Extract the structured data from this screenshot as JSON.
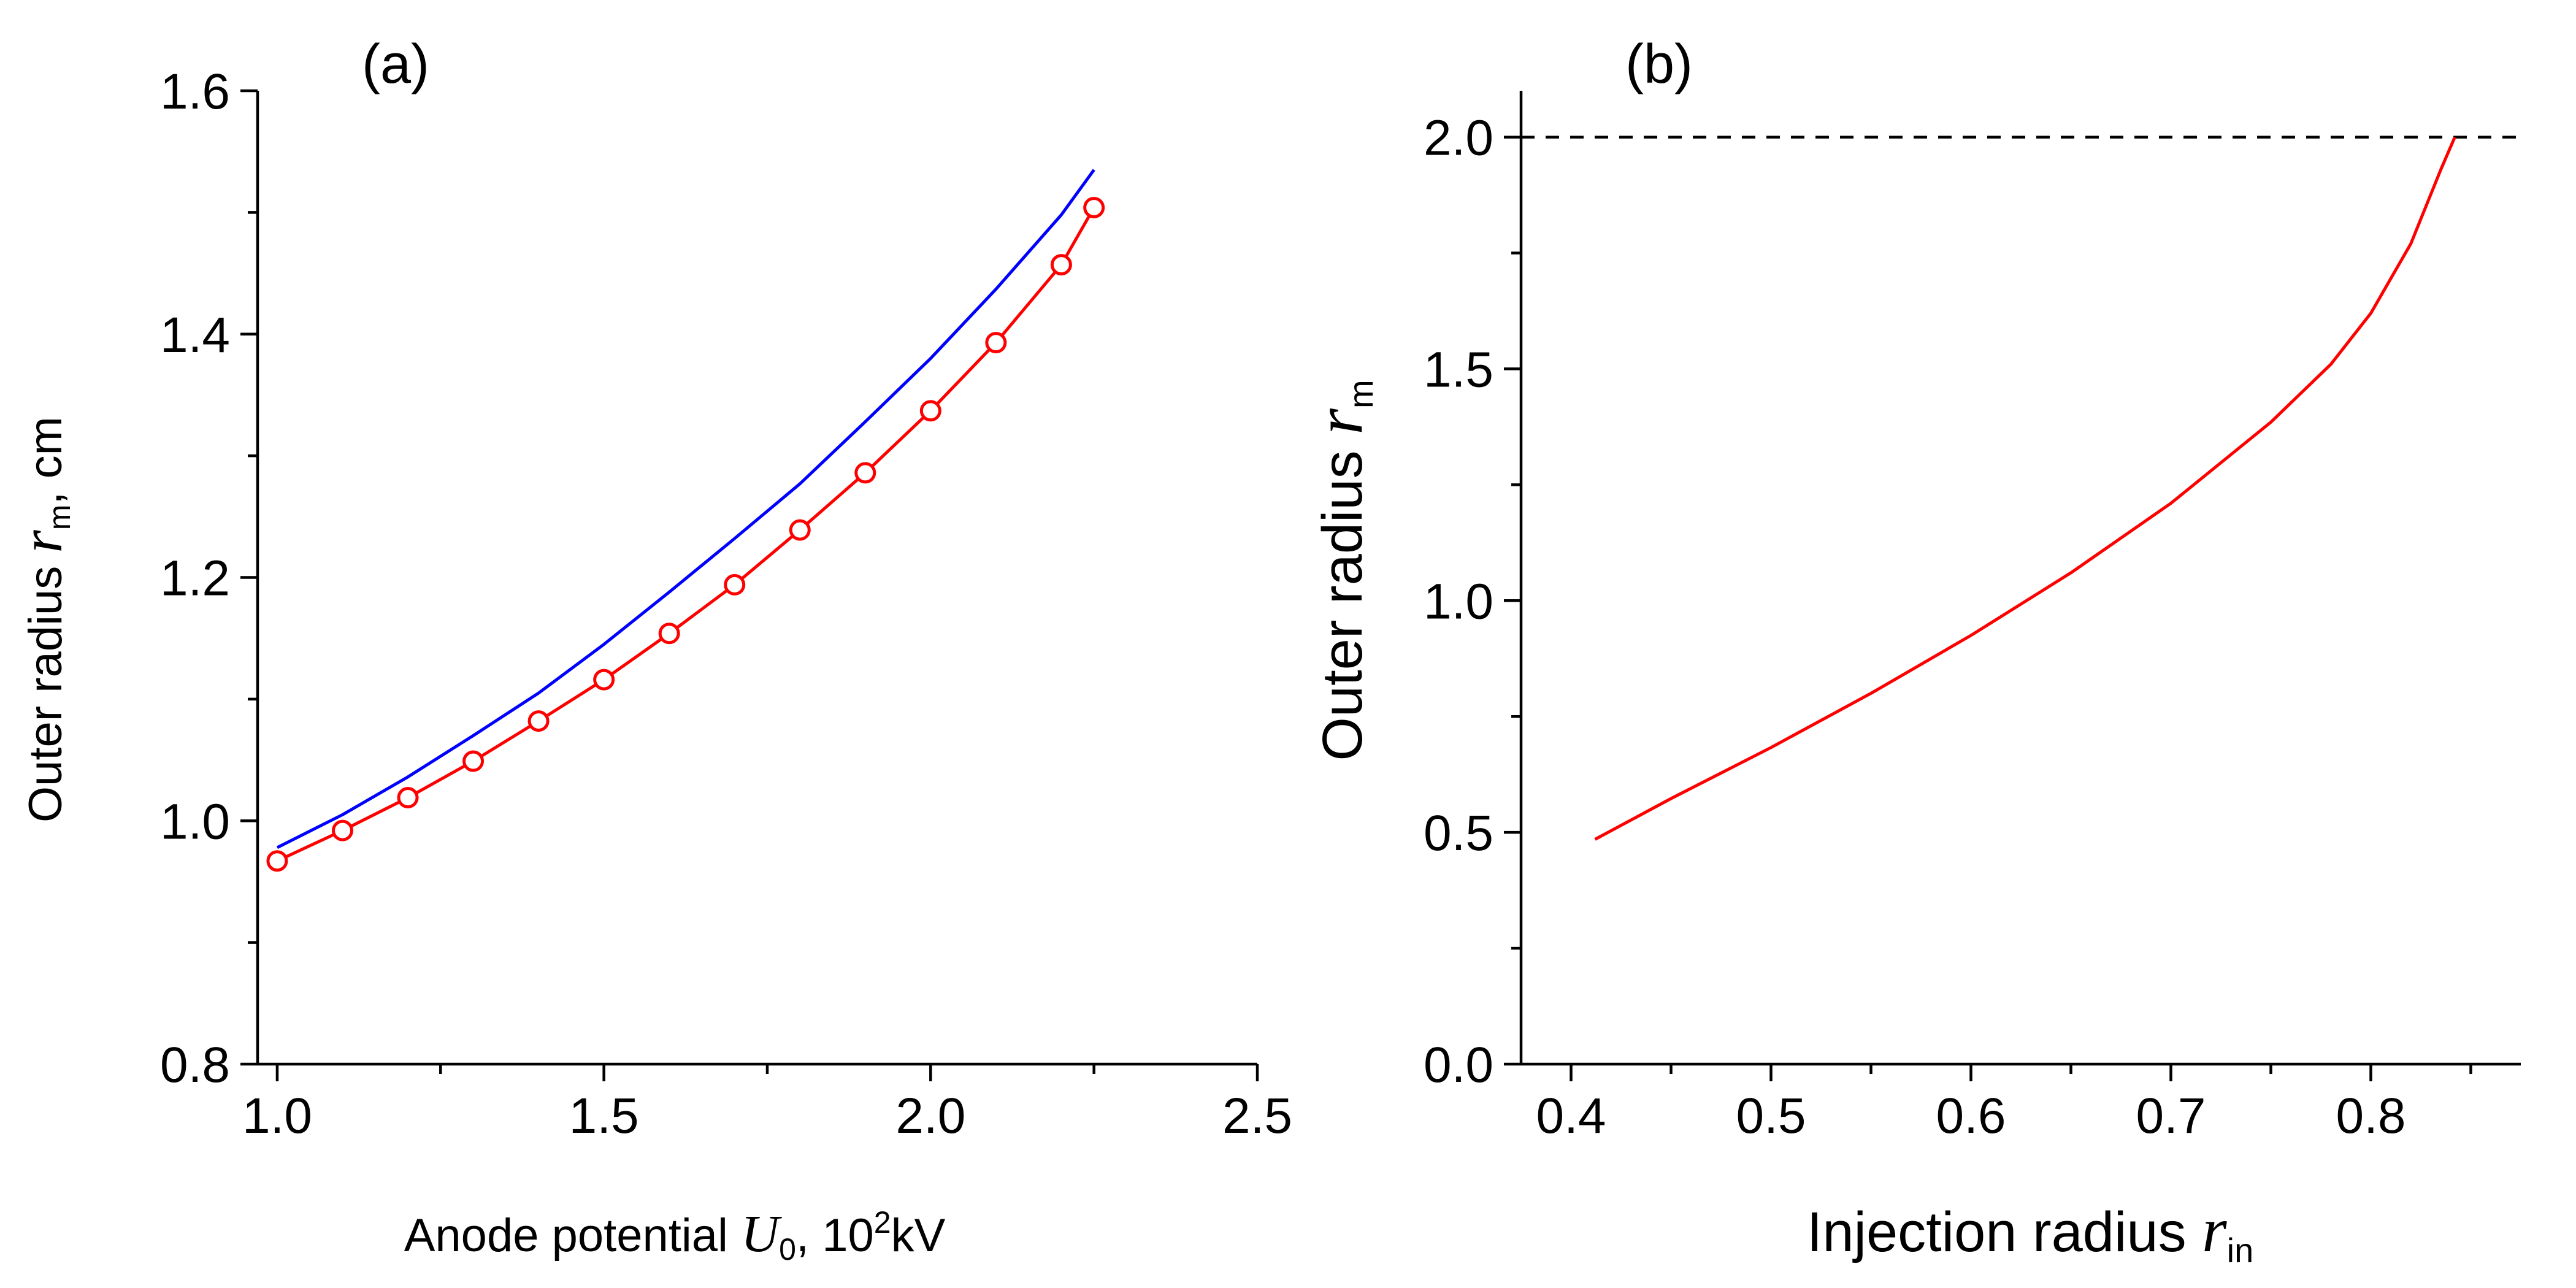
{
  "chart_data": [
    {
      "panel": "(a)",
      "type": "line",
      "xlabel": {
        "text": "Anode potential ",
        "var": "U",
        "var_sub": "0",
        "unit_pre": ", 10",
        "unit_sup": "2",
        "unit_post": "kV"
      },
      "ylabel": {
        "text": "Outer radius ",
        "var": "r",
        "var_sub": "m",
        "unit": ", cm"
      },
      "xlim": [
        0.97,
        2.5
      ],
      "ylim": [
        0.8,
        1.6
      ],
      "x_major_ticks": [
        1.0,
        1.5,
        2.0,
        2.5
      ],
      "x_tick_labels": [
        "1.0",
        "1.5",
        "2.0",
        "2.5"
      ],
      "x_minor_ticks": [
        1.25,
        1.75,
        2.25
      ],
      "y_major_ticks": [
        0.8,
        1.0,
        1.2,
        1.4,
        1.6
      ],
      "y_tick_labels": [
        "0.8",
        "1.0",
        "1.2",
        "1.4",
        "1.6"
      ],
      "y_minor_ticks": [
        0.9,
        1.1,
        1.3,
        1.5
      ],
      "series": [
        {
          "name": "blue-line",
          "color": "#0000ff",
          "markers": false,
          "x": [
            1.0,
            1.1,
            1.2,
            1.3,
            1.4,
            1.5,
            1.6,
            1.7,
            1.8,
            1.9,
            2.0,
            2.1,
            2.2,
            2.25
          ],
          "y": [
            0.978,
            1.005,
            1.036,
            1.07,
            1.105,
            1.145,
            1.188,
            1.232,
            1.277,
            1.328,
            1.38,
            1.437,
            1.498,
            1.535
          ]
        },
        {
          "name": "red-circles",
          "color": "#ff0000",
          "markers": true,
          "x": [
            1.0,
            1.1,
            1.2,
            1.3,
            1.4,
            1.5,
            1.6,
            1.7,
            1.8,
            1.9,
            2.0,
            2.1,
            2.2,
            2.25
          ],
          "y": [
            0.967,
            0.992,
            1.019,
            1.049,
            1.082,
            1.116,
            1.154,
            1.194,
            1.239,
            1.286,
            1.337,
            1.393,
            1.457,
            1.504
          ]
        }
      ]
    },
    {
      "panel": "(b)",
      "type": "line",
      "xlabel": {
        "text": "Injection radius ",
        "var": "r",
        "var_sub": "in"
      },
      "ylabel": {
        "text": "Outer radius ",
        "var": "r",
        "var_sub": "m"
      },
      "xlim": [
        0.375,
        0.875
      ],
      "ylim": [
        0.0,
        2.1
      ],
      "x_major_ticks": [
        0.4,
        0.5,
        0.6,
        0.7,
        0.8
      ],
      "x_tick_labels": [
        "0.4",
        "0.5",
        "0.6",
        "0.7",
        "0.8"
      ],
      "x_minor_ticks": [
        0.45,
        0.55,
        0.65,
        0.75,
        0.85
      ],
      "y_major_ticks": [
        0.0,
        0.5,
        1.0,
        1.5,
        2.0
      ],
      "y_tick_labels": [
        "0.0",
        "0.5",
        "1.0",
        "1.5",
        "2.0"
      ],
      "y_minor_ticks": [
        0.25,
        0.75,
        1.25,
        1.75
      ],
      "hline": {
        "y": 2.0,
        "style": "dashed",
        "color": "#000000"
      },
      "series": [
        {
          "name": "red-curve",
          "color": "#ff0000",
          "markers": false,
          "x": [
            0.412,
            0.45,
            0.5,
            0.55,
            0.6,
            0.65,
            0.7,
            0.75,
            0.78,
            0.8,
            0.82,
            0.835,
            0.842
          ],
          "y": [
            0.485,
            0.573,
            0.683,
            0.8,
            0.925,
            1.06,
            1.21,
            1.385,
            1.51,
            1.62,
            1.77,
            1.93,
            2.0
          ]
        }
      ]
    }
  ]
}
